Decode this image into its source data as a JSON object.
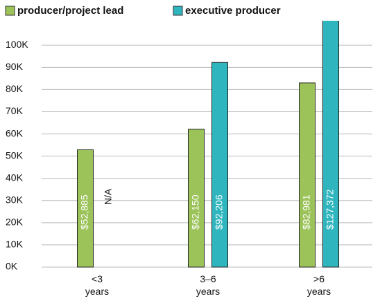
{
  "chart_data": {
    "type": "bar",
    "categories": [
      "<3 years",
      "3–6 years",
      ">6 years"
    ],
    "series": [
      {
        "name": "producer/project lead",
        "color": "#9cc35a",
        "values": [
          52885,
          62150,
          82981
        ],
        "value_labels": [
          "$52,885",
          "$62,150",
          "$82,981"
        ]
      },
      {
        "name": "executive producer",
        "color": "#2fb5be",
        "values": [
          null,
          92206,
          127372
        ],
        "value_labels": [
          "N/A",
          "$92,206",
          "$127,372"
        ]
      }
    ],
    "ylim": [
      0,
      111000
    ],
    "yticks": [
      {
        "value": 0,
        "label": "0K"
      },
      {
        "value": 10000,
        "label": "10K"
      },
      {
        "value": 20000,
        "label": "20K"
      },
      {
        "value": 30000,
        "label": "30K"
      },
      {
        "value": 40000,
        "label": "40K"
      },
      {
        "value": 50000,
        "label": "50K"
      },
      {
        "value": 60000,
        "label": "60K"
      },
      {
        "value": 70000,
        "label": "70K"
      },
      {
        "value": 80000,
        "label": "80K"
      },
      {
        "value": 90000,
        "label": "90K"
      },
      {
        "value": 100000,
        "label": "100K"
      }
    ],
    "grid": true
  }
}
